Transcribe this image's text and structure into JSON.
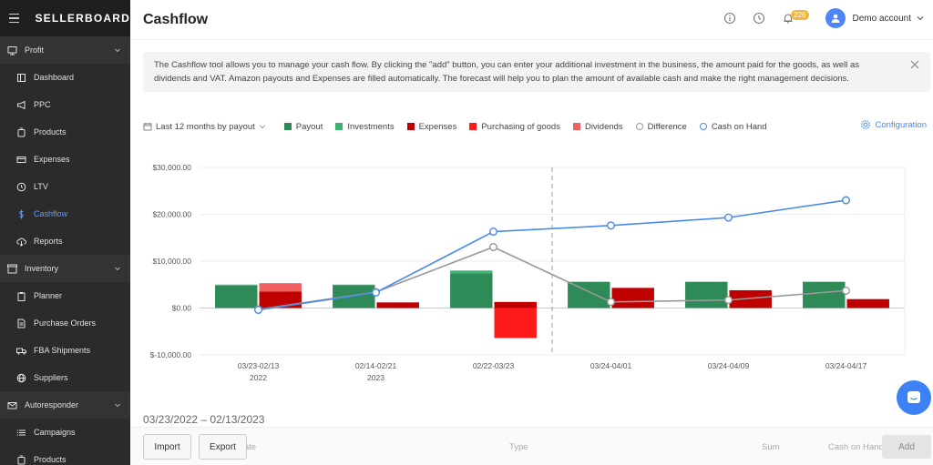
{
  "app": {
    "logo": "SELLERBOARD"
  },
  "sidebar": {
    "items": [
      {
        "label": "Profit",
        "icon": "monitor-icon",
        "type": "section"
      },
      {
        "label": "Dashboard",
        "icon": "dashboard-icon",
        "type": "sub"
      },
      {
        "label": "PPC",
        "icon": "megaphone-icon",
        "type": "sub"
      },
      {
        "label": "Products",
        "icon": "products-icon",
        "type": "sub"
      },
      {
        "label": "Expenses",
        "icon": "card-icon",
        "type": "sub"
      },
      {
        "label": "LTV",
        "icon": "clock-icon",
        "type": "sub"
      },
      {
        "label": "Cashflow",
        "icon": "dollar-icon",
        "type": "sub",
        "active": true
      },
      {
        "label": "Reports",
        "icon": "cloud-download-icon",
        "type": "sub"
      },
      {
        "label": "Inventory",
        "icon": "box-icon",
        "type": "section"
      },
      {
        "label": "Planner",
        "icon": "clipboard-icon",
        "type": "sub"
      },
      {
        "label": "Purchase Orders",
        "icon": "document-icon",
        "type": "sub"
      },
      {
        "label": "FBA Shipments",
        "icon": "truck-icon",
        "type": "sub"
      },
      {
        "label": "Suppliers",
        "icon": "globe-icon",
        "type": "sub"
      },
      {
        "label": "Autoresponder",
        "icon": "mail-icon",
        "type": "section"
      },
      {
        "label": "Campaigns",
        "icon": "list-icon",
        "type": "sub"
      },
      {
        "label": "Products",
        "icon": "products-icon",
        "type": "sub"
      }
    ]
  },
  "header": {
    "title": "Cashflow",
    "notifications": "226",
    "account": "Demo account"
  },
  "info_text": "The Cashflow tool allows you to manage your cash flow. By clicking the \"add\" button, you can enter your additional investment in the business, the amount paid for the goods, as well as dividends and VAT. Amazon payouts and Expenses are filled automatically. The forecast will help you to plan the amount of available cash and make the right management decisions.",
  "filters": {
    "period": "Last 12 months by payout",
    "configuration": "Configuration"
  },
  "legend": [
    {
      "label": "Payout",
      "color": "#2e8b57",
      "shape": "square"
    },
    {
      "label": "Investments",
      "color": "#3cb371",
      "shape": "square"
    },
    {
      "label": "Expenses",
      "color": "#c00000",
      "shape": "square"
    },
    {
      "label": "Purchasing of goods",
      "color": "#ff1a1a",
      "shape": "square"
    },
    {
      "label": "Dividends",
      "color": "#f06060",
      "shape": "square"
    },
    {
      "label": "Difference",
      "color": "#999999",
      "shape": "circle"
    },
    {
      "label": "Cash on Hand",
      "color": "#4a8ae8",
      "shape": "circle"
    }
  ],
  "chart_data": {
    "type": "bar",
    "categories": [
      [
        "03/23-02/13",
        "2022"
      ],
      [
        "02/14-02/21",
        "2023"
      ],
      [
        "02/22-03/23",
        ""
      ],
      [
        "03/24-04/01",
        ""
      ],
      [
        "03/24-04/09",
        ""
      ],
      [
        "03/24-04/17",
        ""
      ]
    ],
    "ylim": [
      -10000,
      30000
    ],
    "yticks": [
      "$-10,000.00",
      "$0.00",
      "$10,000.00",
      "$20,000.00",
      "$30,000.00"
    ],
    "ytick_values": [
      -10000,
      0,
      10000,
      20000,
      30000
    ],
    "forecast_divider_after_index": 2,
    "series": [
      {
        "name": "Payout",
        "kind": "bar",
        "values": [
          4800,
          4900,
          7400,
          5600,
          5600,
          5600
        ]
      },
      {
        "name": "Investments",
        "kind": "bar_stack",
        "values": [
          200,
          100,
          600,
          0,
          0,
          0
        ]
      },
      {
        "name": "Expenses",
        "kind": "bar",
        "values": [
          -3500,
          -1200,
          0,
          -4300,
          -3800,
          -1900
        ]
      },
      {
        "name": "Purchasing of goods",
        "kind": "bar",
        "values": [
          0,
          0,
          -6400,
          0,
          0,
          0
        ]
      },
      {
        "name": "Dividends",
        "kind": "bar",
        "values": [
          -1800,
          0,
          -1300,
          0,
          0,
          0
        ]
      },
      {
        "name": "Difference",
        "kind": "line",
        "values": [
          -300,
          3400,
          13000,
          1300,
          1700,
          3700
        ]
      },
      {
        "name": "Cash on Hand",
        "kind": "line",
        "values": [
          -400,
          3300,
          16300,
          17600,
          19300,
          23000
        ]
      }
    ]
  },
  "range_title": "03/23/2022 – 02/13/2023",
  "table": {
    "import": "Import",
    "export": "Export",
    "col_date": "Date",
    "col_type": "Type",
    "col_sum": "Sum",
    "col_cash": "Cash on Hand",
    "add": "Add"
  }
}
